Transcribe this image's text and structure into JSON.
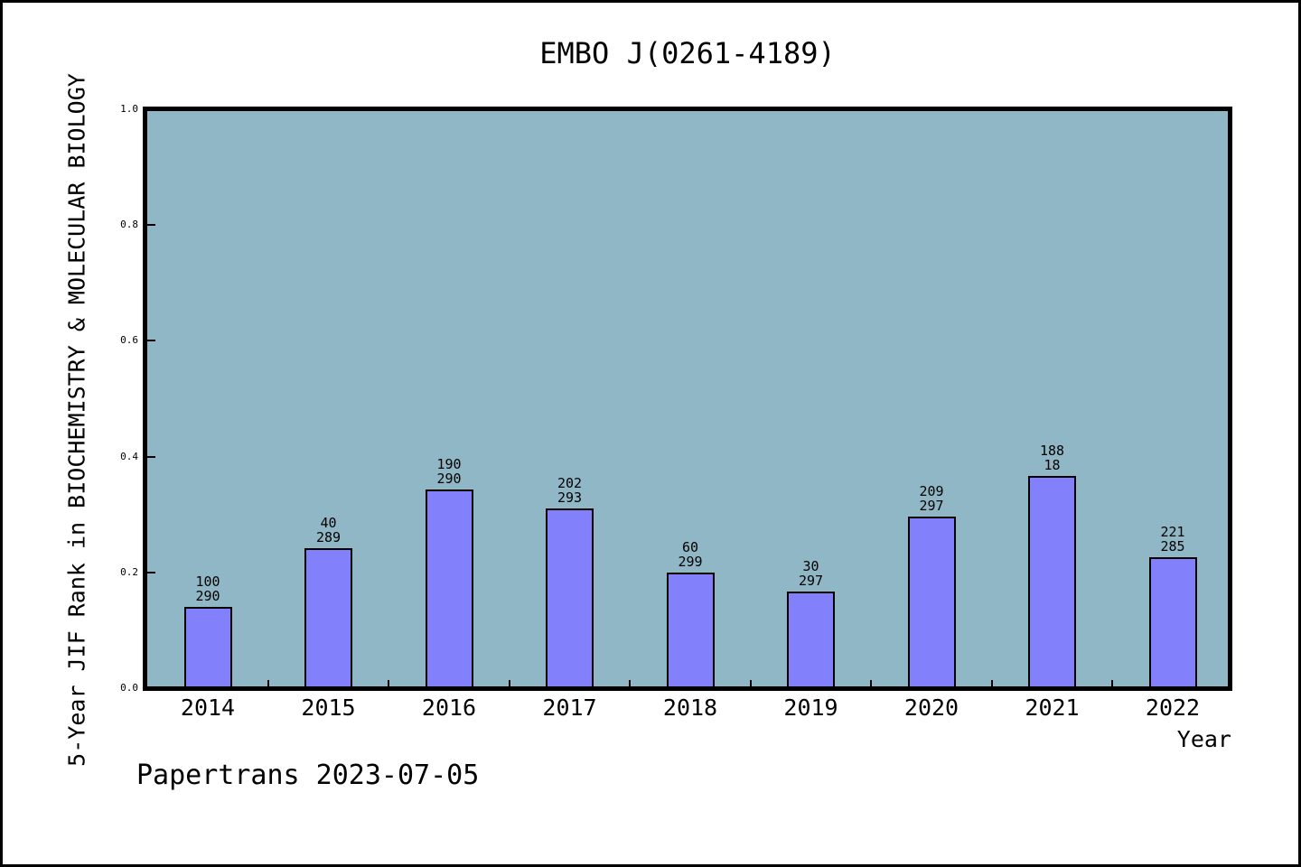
{
  "window": {
    "background": "#ffffff",
    "frame_color": "#000000"
  },
  "footer": {
    "text": "Papertrans 2023-07-05"
  },
  "chart_data": {
    "type": "bar",
    "title": "EMBO J(0261-4189)",
    "xlabel": "Year",
    "ylabel": "5-Year JIF Rank in BIOCHEMISTRY & MOLECULAR BIOLOGY",
    "ylim": [
      0.0,
      1.0
    ],
    "ytick_labels": [
      "0.0",
      "0.2",
      "0.4",
      "0.6",
      "0.8",
      "1.0"
    ],
    "grid": false,
    "legend": false,
    "plot_bg": "#90b7c6",
    "bar_fill": "#8280fa",
    "bar_edge": "#000000",
    "categories": [
      "2014",
      "2015",
      "2016",
      "2017",
      "2018",
      "2019",
      "2020",
      "2021",
      "2022"
    ],
    "series": [
      {
        "name": "5-Year JIF Rank",
        "values": [
          0.141,
          0.242,
          0.343,
          0.31,
          0.2,
          0.167,
          0.296,
          0.367,
          0.226
        ]
      }
    ],
    "bar_annotations": [
      [
        "100",
        "290"
      ],
      [
        "40",
        "289"
      ],
      [
        "190",
        "290"
      ],
      [
        "202",
        "293"
      ],
      [
        "60",
        "299"
      ],
      [
        "30",
        "297"
      ],
      [
        "209",
        "297"
      ],
      [
        "188",
        "18"
      ],
      [
        "221",
        "285"
      ]
    ]
  }
}
